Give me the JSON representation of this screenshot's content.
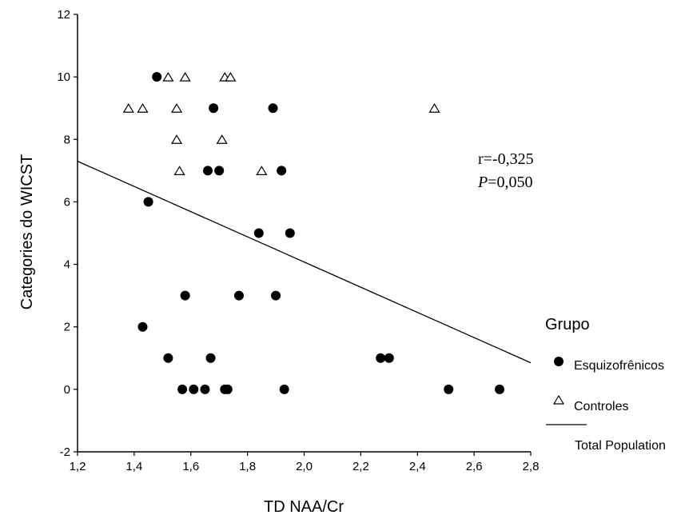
{
  "chart_data": {
    "type": "scatter",
    "xlabel": "TD NAA/Cr",
    "ylabel": "Categories do WICST",
    "xlim": [
      1.2,
      2.8
    ],
    "ylim": [
      -2,
      12
    ],
    "xticks": [
      "1,2",
      "1,4",
      "1,6",
      "1,8",
      "2,0",
      "2,2",
      "2,4",
      "2,6",
      "2,8"
    ],
    "yticks": [
      "-2",
      "0",
      "2",
      "4",
      "6",
      "8",
      "10",
      "12"
    ],
    "grid": false,
    "legend_title": "Grupo",
    "legend_placement": "right",
    "series": [
      {
        "name": "Esquizofrênicos",
        "marker": "filled-circle",
        "color": "#000000",
        "points": [
          [
            1.48,
            10
          ],
          [
            1.68,
            9
          ],
          [
            1.89,
            9
          ],
          [
            1.66,
            7
          ],
          [
            1.7,
            7
          ],
          [
            1.92,
            7
          ],
          [
            1.45,
            6
          ],
          [
            1.84,
            5
          ],
          [
            1.95,
            5
          ],
          [
            1.58,
            3
          ],
          [
            1.77,
            3
          ],
          [
            1.9,
            3
          ],
          [
            1.43,
            2
          ],
          [
            1.52,
            1
          ],
          [
            1.67,
            1
          ],
          [
            2.27,
            1
          ],
          [
            2.3,
            1
          ],
          [
            1.57,
            0
          ],
          [
            1.61,
            0
          ],
          [
            1.65,
            0
          ],
          [
            1.72,
            0
          ],
          [
            1.73,
            0
          ],
          [
            1.93,
            0
          ],
          [
            2.51,
            0
          ],
          [
            2.69,
            0
          ]
        ]
      },
      {
        "name": "Controles",
        "marker": "open-triangle",
        "color": "#000000",
        "points": [
          [
            1.52,
            10
          ],
          [
            1.58,
            10
          ],
          [
            1.72,
            10
          ],
          [
            1.74,
            10
          ],
          [
            1.38,
            9
          ],
          [
            1.43,
            9
          ],
          [
            1.55,
            9
          ],
          [
            2.46,
            9
          ],
          [
            1.55,
            8
          ],
          [
            1.71,
            8
          ],
          [
            1.56,
            7
          ],
          [
            1.85,
            7
          ]
        ]
      }
    ],
    "fit_line": {
      "name": "Total Population",
      "from": [
        1.2,
        7.3
      ],
      "to": [
        2.8,
        0.85
      ]
    },
    "annotation": {
      "r_text": "r=-0,325",
      "p_label": "P",
      "p_value": "=0,050"
    }
  }
}
